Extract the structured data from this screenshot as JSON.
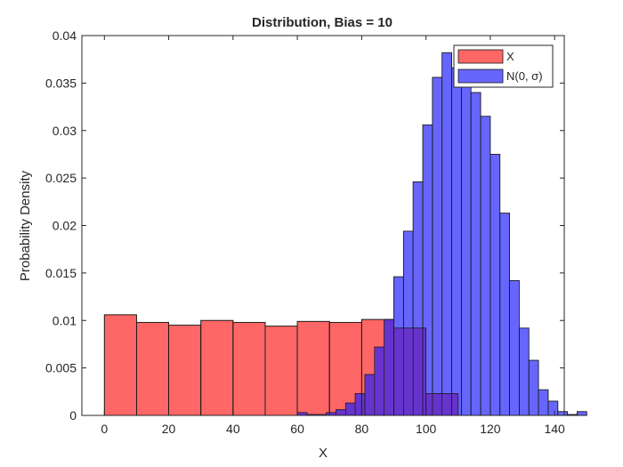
{
  "chart_data": {
    "type": "bar",
    "title": "Distribution, Bias = 10",
    "xlabel": "X",
    "ylabel": "Probability Density",
    "xlim": [
      -7,
      143
    ],
    "ylim": [
      0,
      0.04
    ],
    "xticks": [
      0,
      20,
      40,
      60,
      80,
      100,
      120,
      140
    ],
    "yticks": [
      0,
      0.005,
      0.01,
      0.015,
      0.02,
      0.025,
      0.03,
      0.035,
      0.04
    ],
    "ytick_labels": [
      "0",
      "0.005",
      "0.01",
      "0.015",
      "0.02",
      "0.025",
      "0.03",
      "0.035",
      "0.04"
    ],
    "grid": false,
    "legend_position": "top-right",
    "series": [
      {
        "name": "X",
        "color": "#ff6666",
        "bins": [
          {
            "x0": 0,
            "x1": 10,
            "y": 0.0106
          },
          {
            "x0": 10,
            "x1": 20,
            "y": 0.0098
          },
          {
            "x0": 20,
            "x1": 30,
            "y": 0.0095
          },
          {
            "x0": 30,
            "x1": 40,
            "y": 0.01
          },
          {
            "x0": 40,
            "x1": 50,
            "y": 0.0098
          },
          {
            "x0": 50,
            "x1": 60,
            "y": 0.0094
          },
          {
            "x0": 60,
            "x1": 70,
            "y": 0.0099
          },
          {
            "x0": 70,
            "x1": 80,
            "y": 0.0098
          },
          {
            "x0": 80,
            "x1": 90,
            "y": 0.0101
          },
          {
            "x0": 90,
            "x1": 100,
            "y": 0.0092
          },
          {
            "x0": 100,
            "x1": 110,
            "y": 0.0023
          }
        ]
      },
      {
        "name": "N(0, σ)",
        "color": "#6666ff",
        "bins": [
          {
            "x0": 60,
            "x1": 63,
            "y": 0.0003
          },
          {
            "x0": 63,
            "x1": 66,
            "y": 0.0001
          },
          {
            "x0": 66,
            "x1": 69,
            "y": 0.0001
          },
          {
            "x0": 69,
            "x1": 72,
            "y": 0.0003
          },
          {
            "x0": 72,
            "x1": 75,
            "y": 0.0006
          },
          {
            "x0": 75,
            "x1": 78,
            "y": 0.0013
          },
          {
            "x0": 78,
            "x1": 81,
            "y": 0.0023
          },
          {
            "x0": 81,
            "x1": 84,
            "y": 0.0043
          },
          {
            "x0": 84,
            "x1": 87,
            "y": 0.0072
          },
          {
            "x0": 87,
            "x1": 90,
            "y": 0.0101
          },
          {
            "x0": 90,
            "x1": 93,
            "y": 0.0146
          },
          {
            "x0": 93,
            "x1": 96,
            "y": 0.0194
          },
          {
            "x0": 96,
            "x1": 99,
            "y": 0.0246
          },
          {
            "x0": 99,
            "x1": 102,
            "y": 0.0306
          },
          {
            "x0": 102,
            "x1": 105,
            "y": 0.0356
          },
          {
            "x0": 105,
            "x1": 108,
            "y": 0.0382
          },
          {
            "x0": 108,
            "x1": 111,
            "y": 0.0366
          },
          {
            "x0": 111,
            "x1": 114,
            "y": 0.0374
          },
          {
            "x0": 114,
            "x1": 117,
            "y": 0.034
          },
          {
            "x0": 117,
            "x1": 120,
            "y": 0.0315
          },
          {
            "x0": 120,
            "x1": 123,
            "y": 0.0275
          },
          {
            "x0": 123,
            "x1": 126,
            "y": 0.0213
          },
          {
            "x0": 126,
            "x1": 129,
            "y": 0.0142
          },
          {
            "x0": 129,
            "x1": 132,
            "y": 0.0092
          },
          {
            "x0": 132,
            "x1": 135,
            "y": 0.0058
          },
          {
            "x0": 135,
            "x1": 138,
            "y": 0.0027
          },
          {
            "x0": 138,
            "x1": 141,
            "y": 0.0015
          },
          {
            "x0": 141,
            "x1": 144,
            "y": 0.0004
          },
          {
            "x0": 144,
            "x1": 147,
            "y": 0.0001
          },
          {
            "x0": 147,
            "x1": 150,
            "y": 0.0004
          }
        ]
      }
    ],
    "overlap_color": "#6633cc"
  }
}
